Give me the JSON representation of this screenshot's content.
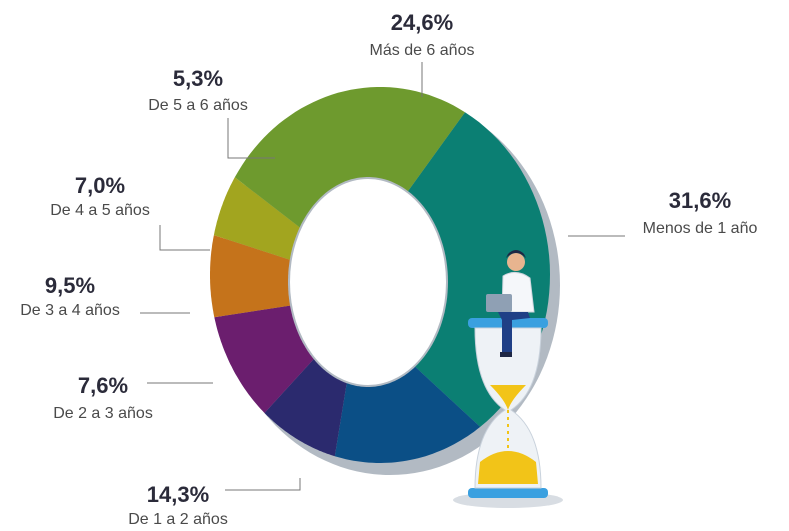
{
  "chart_data": {
    "type": "pie",
    "categories": [
      "Menos de 1 año",
      "De 1 a 2 años",
      "De 2 a 3 años",
      "De 3 a 4 años",
      "De 4 a 5 años",
      "De 5 a 6 años",
      "Más de 6 años"
    ],
    "values": [
      31.6,
      14.3,
      7.6,
      9.5,
      7.0,
      5.3,
      24.6
    ],
    "value_labels": [
      "31,6%",
      "14,3%",
      "7,6%",
      "9,5%",
      "7,0%",
      "5,3%",
      "24,6%"
    ],
    "colors": [
      "#0b7f73",
      "#0b4f86",
      "#2b2a6e",
      "#6b1e6e",
      "#c5731b",
      "#a2a51f",
      "#6e9a2e"
    ]
  }
}
